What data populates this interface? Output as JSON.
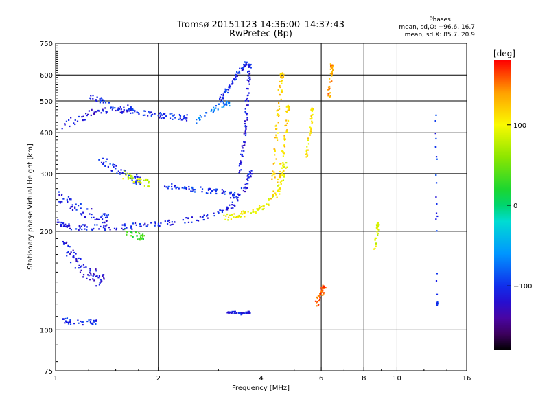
{
  "header": {
    "title_line1": "Tromsø 20151123 14:36:00–14:37:43",
    "title_line2": "RwPretec (Bp)",
    "phases_label": "Phases",
    "stats_o": "mean, sd,O: −96.6, 16.7",
    "stats_x": "mean, sd,X:  85.7, 20.9"
  },
  "chart_data": {
    "type": "scatter",
    "title": "Tromsø 20151123 14:36:00–14:37:43",
    "subtitle": "RwPretec (Bp)",
    "xlabel": "Frequency [MHz]",
    "ylabel": "Stationary phase Virtual Height [km]",
    "x_scale": "log",
    "y_scale": "log",
    "xlim": [
      1,
      16
    ],
    "ylim": [
      75,
      750
    ],
    "x_ticks": [
      1,
      2,
      4,
      6,
      8,
      10,
      16
    ],
    "x_tick_labels": [
      "1",
      "2",
      "4",
      "6",
      "8",
      "10",
      "16"
    ],
    "x_minor_ticks": [
      1.25,
      1.5,
      1.75,
      3,
      5,
      7,
      9,
      12,
      14
    ],
    "y_ticks": [
      75,
      100,
      200,
      300,
      400,
      500,
      600,
      750
    ],
    "y_tick_labels": [
      "75",
      "100",
      "200",
      "300",
      "400",
      "500",
      "600",
      "750"
    ],
    "x_grid": [
      2,
      4,
      6,
      8,
      10
    ],
    "y_grid": [
      100,
      200,
      300,
      400,
      500,
      600
    ],
    "grid": true,
    "colorbar": {
      "label": "[deg]",
      "range": [
        -180,
        180
      ],
      "ticks": [
        100,
        0,
        -100
      ],
      "tick_labels": [
        "100",
        "0",
        "−100"
      ]
    },
    "traces": [
      {
        "x": [
          1.0,
          1.05,
          1.1,
          1.2,
          1.3,
          1.45,
          1.6,
          1.8,
          2.0,
          2.2,
          2.5,
          2.8,
          3.1,
          3.3,
          3.45,
          3.6,
          3.7
        ],
        "y": [
          215,
          210,
          207,
          206,
          205,
          206,
          207,
          208,
          210,
          213,
          217,
          222,
          230,
          240,
          255,
          275,
          300
        ],
        "phase": -110,
        "spread": 0.03
      },
      {
        "x": [
          1.0,
          1.05,
          1.12,
          1.2,
          1.3,
          1.4
        ],
        "y": [
          260,
          250,
          240,
          232,
          225,
          220
        ],
        "phase": -108,
        "spread": 0.05
      },
      {
        "x": [
          3.45,
          3.5,
          3.55,
          3.6,
          3.62,
          3.65,
          3.68,
          3.7
        ],
        "y": [
          300,
          330,
          370,
          420,
          470,
          520,
          580,
          640
        ],
        "phase": -112,
        "spread": 0.02
      },
      {
        "x": [
          3.0,
          3.1,
          3.2,
          3.3,
          3.4,
          3.5,
          3.6
        ],
        "y": [
          500,
          520,
          545,
          570,
          600,
          625,
          650
        ],
        "phase": -105,
        "spread": 0.02
      },
      {
        "x": [
          1.25,
          1.35,
          1.45,
          1.6,
          1.75,
          1.9,
          2.05,
          2.2,
          2.4
        ],
        "y": [
          520,
          500,
          480,
          470,
          462,
          455,
          450,
          448,
          445
        ],
        "phase": -102,
        "spread": 0.03
      },
      {
        "x": [
          1.05,
          1.1,
          1.15,
          1.2,
          1.25,
          1.3,
          1.35
        ],
        "y": [
          185,
          172,
          162,
          155,
          150,
          145,
          142
        ],
        "phase": -115,
        "spread": 0.06
      },
      {
        "x": [
          1.35,
          1.45,
          1.55,
          1.65,
          1.75
        ],
        "y": [
          330,
          318,
          305,
          295,
          285
        ],
        "phase": -100,
        "spread": 0.04
      },
      {
        "x": [
          1.55,
          1.65,
          1.75,
          1.85
        ],
        "y": [
          300,
          292,
          285,
          280
        ],
        "phase": 80,
        "spread": 0.04
      },
      {
        "x": [
          2.1,
          2.3,
          2.5,
          2.7,
          2.9,
          3.1,
          3.3
        ],
        "y": [
          275,
          272,
          270,
          268,
          265,
          262,
          258
        ],
        "phase": -100,
        "spread": 0.03
      },
      {
        "x": [
          2.6,
          2.8,
          3.0,
          3.2
        ],
        "y": [
          430,
          460,
          480,
          495
        ],
        "phase": -70,
        "spread": 0.03
      },
      {
        "x": [
          3.1,
          3.3,
          3.5,
          3.7,
          3.9,
          4.1,
          4.3,
          4.5,
          4.6,
          4.7
        ],
        "y": [
          220,
          222,
          225,
          228,
          232,
          240,
          250,
          265,
          285,
          320
        ],
        "phase": 100,
        "spread": 0.03
      },
      {
        "x": [
          4.3,
          4.35,
          4.4,
          4.45,
          4.5,
          4.55,
          4.6
        ],
        "y": [
          250,
          300,
          360,
          420,
          480,
          540,
          600
        ],
        "phase": 120,
        "spread": 0.025
      },
      {
        "x": [
          4.5,
          4.6,
          4.7,
          4.75,
          4.8
        ],
        "y": [
          280,
          330,
          380,
          430,
          480
        ],
        "phase": 115,
        "spread": 0.02
      },
      {
        "x": [
          5.4,
          5.5,
          5.6,
          5.65
        ],
        "y": [
          330,
          370,
          420,
          470
        ],
        "phase": 110,
        "spread": 0.015
      },
      {
        "x": [
          3.2,
          3.3,
          3.4,
          3.5,
          3.6,
          3.7
        ],
        "y": [
          113,
          113,
          113,
          112,
          113,
          113
        ],
        "phase": -110,
        "spread": 0.01
      },
      {
        "x": [
          1.05,
          1.1,
          1.2,
          1.3
        ],
        "y": [
          108,
          106,
          105,
          106
        ],
        "phase": -105,
        "spread": 0.03
      },
      {
        "x": [
          1.05,
          1.15,
          1.25,
          1.35,
          1.5,
          1.65
        ],
        "y": [
          420,
          440,
          455,
          465,
          470,
          472
        ],
        "phase": -115,
        "spread": 0.04
      },
      {
        "x": [
          1.6,
          1.7,
          1.8
        ],
        "y": [
          200,
          195,
          192
        ],
        "phase": 30,
        "spread": 0.03
      },
      {
        "x": [
          6.3,
          6.35,
          6.4,
          6.45
        ],
        "y": [
          560,
          520,
          600,
          640
        ],
        "phase": 140,
        "spread": 0.02
      },
      {
        "x": [
          5.8,
          5.9,
          6.0,
          6.1
        ],
        "y": [
          118,
          125,
          130,
          135
        ],
        "phase": 160,
        "spread": 0.03
      },
      {
        "x": [
          8.6,
          8.7,
          8.8
        ],
        "y": [
          175,
          190,
          210
        ],
        "phase": 90,
        "spread": 0.02
      },
      {
        "x": [
          13.0,
          13.05,
          13.1
        ],
        "y": [
          460,
          260,
          120
        ],
        "phase": -100,
        "spread": 0.01
      }
    ]
  }
}
